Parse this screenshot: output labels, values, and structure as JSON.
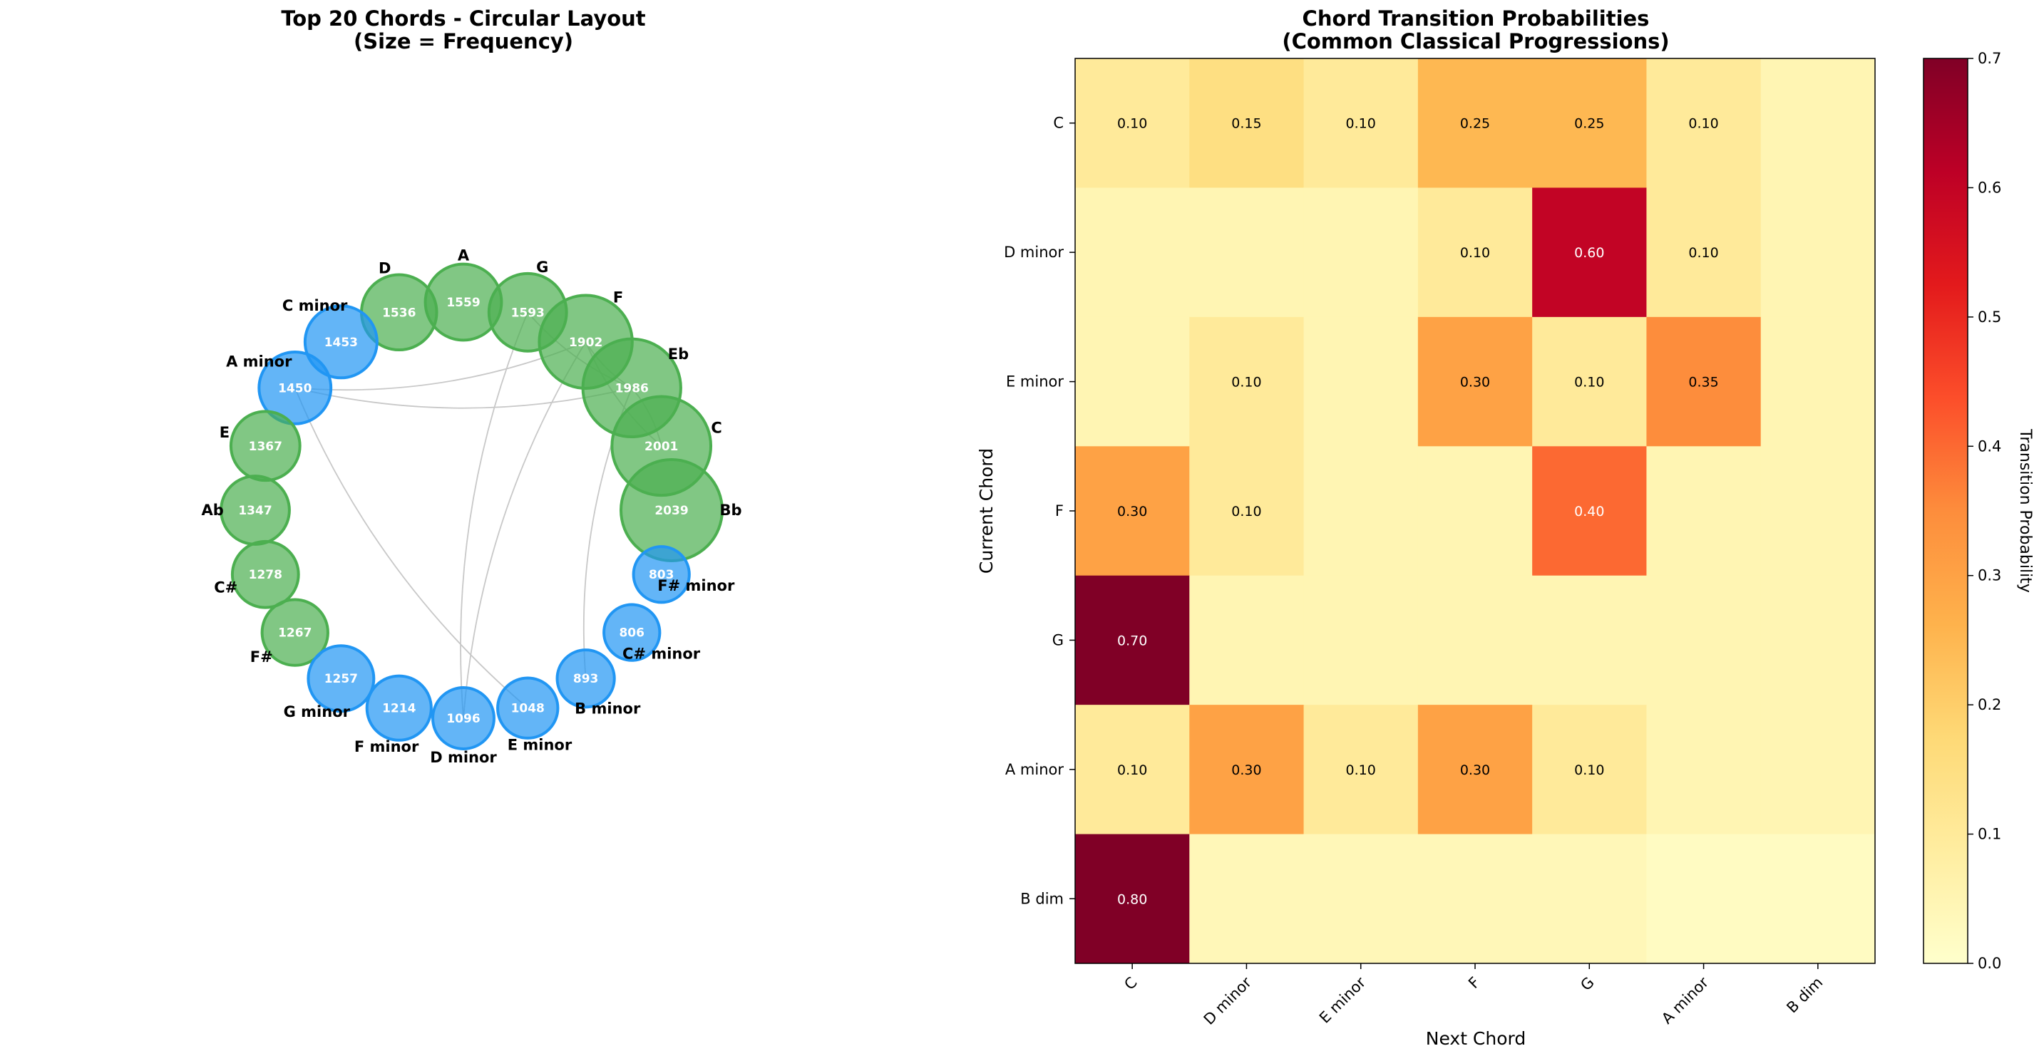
{
  "chart_data": [
    {
      "type": "network",
      "title": [
        "Top 20 Chords - Circular Layout",
        "(Size = Frequency)"
      ],
      "colors": {
        "major": "#4caf50",
        "minor": "#2196f3",
        "edge": "#c8c8c8"
      },
      "nodes": [
        {
          "label": "Bb",
          "count": 2039,
          "kind": "major"
        },
        {
          "label": "C",
          "count": 2001,
          "kind": "major"
        },
        {
          "label": "Eb",
          "count": 1986,
          "kind": "major"
        },
        {
          "label": "F",
          "count": 1902,
          "kind": "major"
        },
        {
          "label": "G",
          "count": 1593,
          "kind": "major"
        },
        {
          "label": "A",
          "count": 1559,
          "kind": "major"
        },
        {
          "label": "D",
          "count": 1536,
          "kind": "major"
        },
        {
          "label": "C minor",
          "count": 1453,
          "kind": "minor"
        },
        {
          "label": "A minor",
          "count": 1450,
          "kind": "minor"
        },
        {
          "label": "E",
          "count": 1367,
          "kind": "major"
        },
        {
          "label": "Ab",
          "count": 1347,
          "kind": "major"
        },
        {
          "label": "C#",
          "count": 1278,
          "kind": "major"
        },
        {
          "label": "F#",
          "count": 1267,
          "kind": "major"
        },
        {
          "label": "G minor",
          "count": 1257,
          "kind": "minor"
        },
        {
          "label": "F minor",
          "count": 1214,
          "kind": "minor"
        },
        {
          "label": "D minor",
          "count": 1096,
          "kind": "minor"
        },
        {
          "label": "E minor",
          "count": 1048,
          "kind": "minor"
        },
        {
          "label": "B minor",
          "count": 893,
          "kind": "minor"
        },
        {
          "label": "C# minor",
          "count": 806,
          "kind": "minor"
        },
        {
          "label": "F# minor",
          "count": 803,
          "kind": "minor"
        }
      ],
      "edges": [
        [
          "A minor",
          "F"
        ],
        [
          "A minor",
          "Eb"
        ],
        [
          "A minor",
          "E minor"
        ],
        [
          "F",
          "C"
        ],
        [
          "F",
          "Eb"
        ],
        [
          "F",
          "D minor"
        ],
        [
          "G",
          "D minor"
        ],
        [
          "Eb",
          "B minor"
        ],
        [
          "G",
          "Eb"
        ],
        [
          "C",
          "Eb"
        ]
      ]
    },
    {
      "type": "heatmap",
      "title": [
        "Chord Transition Probabilities",
        "(Common Classical Progressions)"
      ],
      "xlabel": "Next Chord",
      "ylabel": "Current Chord",
      "x_categories": [
        "C",
        "D minor",
        "E minor",
        "F",
        "G",
        "A minor",
        "B dim"
      ],
      "y_categories": [
        "C",
        "D minor",
        "E minor",
        "F",
        "G",
        "A minor",
        "B dim"
      ],
      "values": [
        [
          0.1,
          0.15,
          0.1,
          0.25,
          0.25,
          0.1,
          0.05
        ],
        [
          0.05,
          0.05,
          0.05,
          0.1,
          0.6,
          0.1,
          0.05
        ],
        [
          0.05,
          0.1,
          0.05,
          0.3,
          0.1,
          0.35,
          0.05
        ],
        [
          0.3,
          0.1,
          0.05,
          0.05,
          0.4,
          0.05,
          0.05
        ],
        [
          0.7,
          0.05,
          0.05,
          0.05,
          0.05,
          0.05,
          0.05
        ],
        [
          0.1,
          0.3,
          0.1,
          0.3,
          0.1,
          0.05,
          0.05
        ],
        [
          0.8,
          0.04,
          0.04,
          0.04,
          0.04,
          0.02,
          0.02
        ]
      ],
      "annotate_threshold": 0.1,
      "colormap": "YlOrRd",
      "colorbar": {
        "label": "Transition Probability",
        "range": [
          0.0,
          0.7
        ],
        "ticks": [
          "0.0",
          "0.1",
          "0.2",
          "0.3",
          "0.4",
          "0.5",
          "0.6",
          "0.7"
        ]
      }
    }
  ]
}
